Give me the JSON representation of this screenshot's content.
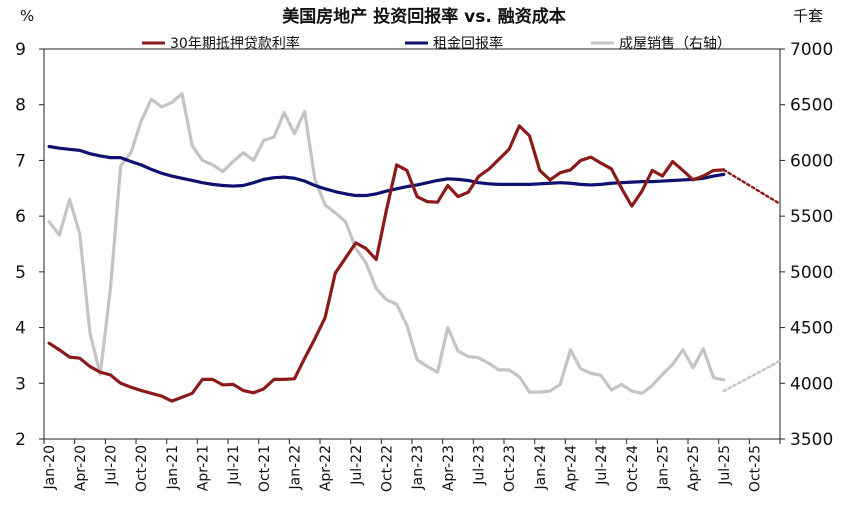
{
  "chart_data": {
    "type": "line",
    "title": "美国房地产 投资回报率 vs. 融资成本",
    "left_unit": "%",
    "right_unit": "千套",
    "x_tick_labels": [
      "Jan-20",
      "Apr-20",
      "Jul-20",
      "Oct-20",
      "Jan-21",
      "Apr-21",
      "Jul-21",
      "Oct-21",
      "Jan-22",
      "Apr-22",
      "Jul-22",
      "Oct-22",
      "Jan-23",
      "Apr-23",
      "Jul-23",
      "Oct-23",
      "Jan-24",
      "Apr-24",
      "Jul-24",
      "Oct-24",
      "Jan-25",
      "Apr-25",
      "Jul-25",
      "Oct-25"
    ],
    "x_range": [
      "Jan-20",
      "Dec-25"
    ],
    "y_left": {
      "min": 2,
      "max": 9,
      "ticks": [
        2,
        3,
        4,
        5,
        6,
        7,
        8,
        9
      ]
    },
    "y_right": {
      "min": 3500,
      "max": 7000,
      "ticks": [
        3500,
        4000,
        4500,
        5000,
        5500,
        6000,
        6500,
        7000
      ]
    },
    "grid": false,
    "legend_position": "top",
    "series": [
      {
        "name": "30年期抵押贷款利率",
        "axis": "left",
        "color": "#8b1a1a",
        "start": "Jan-20",
        "values": [
          3.72,
          3.6,
          3.47,
          3.45,
          3.3,
          3.2,
          3.15,
          3.0,
          2.93,
          2.87,
          2.82,
          2.77,
          2.68,
          2.75,
          2.82,
          3.07,
          3.07,
          2.97,
          2.98,
          2.87,
          2.83,
          2.9,
          3.07,
          3.07,
          3.08,
          3.45,
          3.8,
          4.18,
          4.98,
          5.25,
          5.52,
          5.42,
          5.22,
          6.11,
          6.92,
          6.82,
          6.35,
          6.26,
          6.25,
          6.55,
          6.35,
          6.43,
          6.71,
          6.84,
          7.02,
          7.2,
          7.62,
          7.44,
          6.82,
          6.65,
          6.78,
          6.83,
          7.0,
          7.06,
          6.95,
          6.85,
          6.5,
          6.18,
          6.45,
          6.82,
          6.72,
          6.98,
          6.82,
          6.65,
          6.72,
          6.82,
          6.83
        ],
        "forecast": {
          "color": "#8b1a1a",
          "style": "dotted",
          "start": "Jul-25",
          "values": [
            6.83,
            6.22
          ]
        }
      },
      {
        "name": "租金回报率",
        "axis": "left",
        "color": "#0d1270",
        "start": "Jan-20",
        "values": [
          7.25,
          7.22,
          7.2,
          7.18,
          7.12,
          7.08,
          7.05,
          7.05,
          6.98,
          6.92,
          6.84,
          6.77,
          6.72,
          6.68,
          6.64,
          6.6,
          6.57,
          6.55,
          6.54,
          6.55,
          6.6,
          6.66,
          6.69,
          6.7,
          6.68,
          6.63,
          6.55,
          6.49,
          6.44,
          6.4,
          6.37,
          6.37,
          6.4,
          6.45,
          6.49,
          6.53,
          6.56,
          6.6,
          6.64,
          6.67,
          6.66,
          6.64,
          6.6,
          6.58,
          6.57,
          6.57,
          6.57,
          6.57,
          6.58,
          6.59,
          6.6,
          6.59,
          6.57,
          6.56,
          6.57,
          6.59,
          6.6,
          6.61,
          6.62,
          6.62,
          6.63,
          6.64,
          6.65,
          6.66,
          6.68,
          6.72,
          6.75
        ]
      },
      {
        "name": "成屋销售（右轴）",
        "axis": "right",
        "color": "#c4c4c4",
        "start": "Jan-20",
        "values": [
          5450,
          5330,
          5650,
          5340,
          4450,
          4080,
          4850,
          5950,
          6070,
          6350,
          6550,
          6480,
          6520,
          6600,
          6130,
          6000,
          5960,
          5900,
          5990,
          6070,
          6000,
          6180,
          6210,
          6430,
          6240,
          6440,
          5830,
          5600,
          5530,
          5450,
          5210,
          5080,
          4850,
          4750,
          4710,
          4520,
          4210,
          4150,
          4100,
          4500,
          4290,
          4240,
          4230,
          4180,
          4120,
          4120,
          4060,
          3920,
          3920,
          3930,
          3990,
          4300,
          4130,
          4090,
          4070,
          3940,
          3990,
          3930,
          3910,
          3980,
          4080,
          4170,
          4300,
          4140,
          4310,
          4050,
          4030
        ],
        "forecast": {
          "color": "#c4c4c4",
          "style": "dotted",
          "start": "Jul-25",
          "values": [
            3930,
            4200
          ]
        }
      }
    ]
  }
}
